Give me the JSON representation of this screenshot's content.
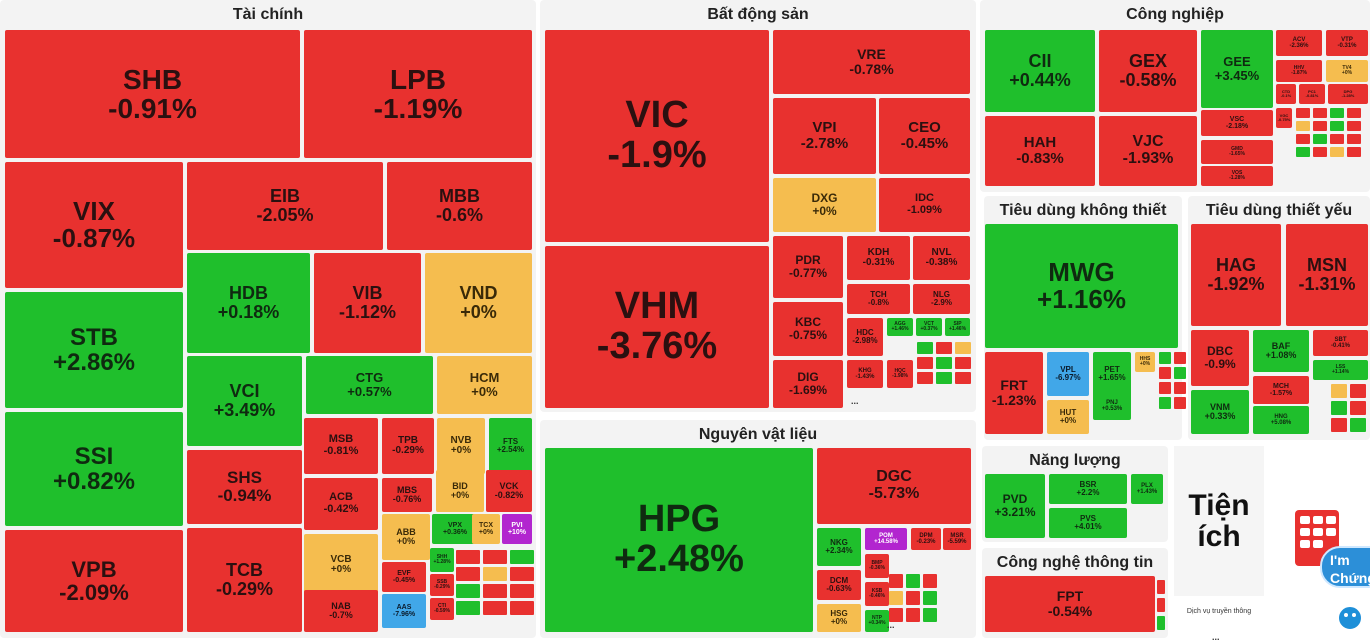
{
  "chart_data": {
    "type": "treemap",
    "sectors": [
      {
        "name": "Tài chính",
        "items": [
          {
            "s": "SHB",
            "v": "-0.91%"
          },
          {
            "s": "LPB",
            "v": "-1.19%"
          },
          {
            "s": "VIX",
            "v": "-0.87%"
          },
          {
            "s": "EIB",
            "v": "-2.05%"
          },
          {
            "s": "MBB",
            "v": "-0.6%"
          },
          {
            "s": "STB",
            "v": "+2.86%"
          },
          {
            "s": "HDB",
            "v": "+0.18%"
          },
          {
            "s": "VIB",
            "v": "-1.12%"
          },
          {
            "s": "VND",
            "v": "+0%"
          },
          {
            "s": "SSI",
            "v": "+0.82%"
          },
          {
            "s": "VCI",
            "v": "+3.49%"
          },
          {
            "s": "CTG",
            "v": "+0.57%"
          },
          {
            "s": "HCM",
            "v": "+0%"
          },
          {
            "s": "MSB",
            "v": "-0.81%"
          },
          {
            "s": "TPB",
            "v": "-0.29%"
          },
          {
            "s": "NVB",
            "v": "+0%"
          },
          {
            "s": "FTS",
            "v": "+2.54%"
          },
          {
            "s": "SHS",
            "v": "-0.94%"
          },
          {
            "s": "ACB",
            "v": "-0.42%"
          },
          {
            "s": "MBS",
            "v": "-0.76%"
          },
          {
            "s": "BID",
            "v": "+0%"
          },
          {
            "s": "VCK",
            "v": "-0.82%"
          },
          {
            "s": "VPB",
            "v": "-2.09%"
          },
          {
            "s": "TCB",
            "v": "-0.29%"
          },
          {
            "s": "VCB",
            "v": "+0%"
          },
          {
            "s": "ABB",
            "v": "+0%"
          },
          {
            "s": "VPX",
            "v": "+0.36%"
          },
          {
            "s": "TCX",
            "v": "+0%"
          },
          {
            "s": "PVI",
            "v": "+10%"
          },
          {
            "s": "EVF",
            "v": "-0.45%"
          },
          {
            "s": "NAB",
            "v": "-0.7%"
          },
          {
            "s": "AAS",
            "v": "-7.96%"
          },
          {
            "s": "SHH",
            "v": "+1.28%"
          },
          {
            "s": "SSB",
            "v": "-0.29%"
          },
          {
            "s": "CTI",
            "v": "-0.59%"
          }
        ]
      },
      {
        "name": "Bất động sản",
        "items": [
          {
            "s": "VIC",
            "v": "-1.9%"
          },
          {
            "s": "VRE",
            "v": "-0.78%"
          },
          {
            "s": "VPI",
            "v": "-2.78%"
          },
          {
            "s": "CEO",
            "v": "-0.45%"
          },
          {
            "s": "DXG",
            "v": "+0%"
          },
          {
            "s": "IDC",
            "v": "-1.09%"
          },
          {
            "s": "VHM",
            "v": "-3.76%"
          },
          {
            "s": "PDR",
            "v": "-0.77%"
          },
          {
            "s": "KDH",
            "v": "-0.31%"
          },
          {
            "s": "NVL",
            "v": "-0.38%"
          },
          {
            "s": "TCH",
            "v": "-0.8%"
          },
          {
            "s": "NLG",
            "v": "-2.9%"
          },
          {
            "s": "KBC",
            "v": "-0.75%"
          },
          {
            "s": "HDC",
            "v": "-2.98%"
          },
          {
            "s": "AGG",
            "v": "+1.46%"
          },
          {
            "s": "VCT",
            "v": "+0.37%"
          },
          {
            "s": "SIP",
            "v": "+1.46%"
          },
          {
            "s": "DIG",
            "v": "-1.69%"
          },
          {
            "s": "KHG",
            "v": "-1.43%"
          },
          {
            "s": "HQC",
            "v": "-1.98%"
          }
        ]
      },
      {
        "name": "Nguyên vật liệu",
        "items": [
          {
            "s": "HPG",
            "v": "+2.48%"
          },
          {
            "s": "DGC",
            "v": "-5.73%"
          },
          {
            "s": "NKG",
            "v": "+2.34%"
          },
          {
            "s": "POM",
            "v": "+14.58%"
          },
          {
            "s": "DPM",
            "v": "-0.23%"
          },
          {
            "s": "MSR",
            "v": "-5.59%"
          },
          {
            "s": "DCM",
            "v": "-0.63%"
          },
          {
            "s": "BMP",
            "v": "-0.36%"
          },
          {
            "s": "HSG",
            "v": "+0%"
          },
          {
            "s": "KSB",
            "v": "-0.46%"
          },
          {
            "s": "NTP",
            "v": "+0.34%"
          }
        ]
      },
      {
        "name": "Công nghiệp",
        "items": [
          {
            "s": "CII",
            "v": "+0.44%"
          },
          {
            "s": "GEX",
            "v": "-0.58%"
          },
          {
            "s": "GEE",
            "v": "+3.45%"
          },
          {
            "s": "ACV",
            "v": "-2.36%"
          },
          {
            "s": "VTP",
            "v": "-0.31%"
          },
          {
            "s": "HHV",
            "v": "-1.87%"
          },
          {
            "s": "TV4",
            "v": "+0%"
          },
          {
            "s": "HAH",
            "v": "-0.83%"
          },
          {
            "s": "VJC",
            "v": "-1.93%"
          },
          {
            "s": "VSC",
            "v": "-2.18%"
          },
          {
            "s": "CTD",
            "v": "-0.1%"
          },
          {
            "s": "PC1",
            "v": "-0.81%"
          },
          {
            "s": "DPG",
            "v": "-1.28%"
          },
          {
            "s": "GMD",
            "v": "-1.65%"
          },
          {
            "s": "VOS",
            "v": "-1.28%"
          },
          {
            "s": "VGC",
            "v": "-0.75%"
          }
        ]
      },
      {
        "name": "Tiêu dùng không thiết yếu",
        "items": [
          {
            "s": "MWG",
            "v": "+1.16%"
          },
          {
            "s": "FRT",
            "v": "-1.23%"
          },
          {
            "s": "VPL",
            "v": "-6.97%"
          },
          {
            "s": "PET",
            "v": "+1.65%"
          },
          {
            "s": "HHS",
            "v": "+0%"
          },
          {
            "s": "HUT",
            "v": "+0%"
          },
          {
            "s": "PNJ",
            "v": "+0.53%"
          }
        ]
      },
      {
        "name": "Tiêu dùng thiết yếu",
        "items": [
          {
            "s": "HAG",
            "v": "-1.92%"
          },
          {
            "s": "MSN",
            "v": "-1.31%"
          },
          {
            "s": "DBC",
            "v": "-0.9%"
          },
          {
            "s": "BAF",
            "v": "+1.08%"
          },
          {
            "s": "SBT",
            "v": "-0.41%"
          },
          {
            "s": "MCH",
            "v": "-1.57%"
          },
          {
            "s": "VNM",
            "v": "+0.33%"
          },
          {
            "s": "HNG",
            "v": "+5.08%"
          },
          {
            "s": "LSS",
            "v": "+1.14%"
          }
        ]
      },
      {
        "name": "Năng lượng",
        "items": [
          {
            "s": "PVD",
            "v": "+3.21%"
          },
          {
            "s": "BSR",
            "v": "+2.2%"
          },
          {
            "s": "PLX",
            "v": "+1.43%"
          },
          {
            "s": "PVS",
            "v": "+4.01%"
          }
        ]
      },
      {
        "name": "Công nghệ thông tin",
        "items": [
          {
            "s": "FPT",
            "v": "-0.54%"
          }
        ]
      },
      {
        "name": "Tiện ích",
        "items": []
      }
    ]
  },
  "tienich_sub": "Dịch vụ truyền thông",
  "badge_text": "I'm Chứng",
  "ellipsis": "..."
}
